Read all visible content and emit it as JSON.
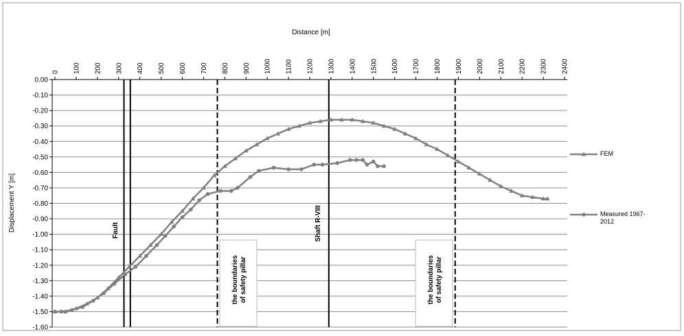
{
  "chart_data": {
    "type": "line",
    "x_label": "Distance [m]",
    "y_label": "Displacement Y [m]",
    "xlim": [
      0,
      2400
    ],
    "xticks": [
      0,
      100,
      200,
      300,
      400,
      500,
      600,
      700,
      800,
      900,
      1000,
      1100,
      1200,
      1300,
      1400,
      1500,
      1600,
      1700,
      1800,
      1900,
      2000,
      2100,
      2200,
      2300,
      2400
    ],
    "ylim": [
      -1.6,
      0
    ],
    "yticks": [
      {
        "value": 0,
        "label": "0.00"
      },
      {
        "value": -0.1,
        "label": "-0.10"
      },
      {
        "value": -0.2,
        "label": "-0.20"
      },
      {
        "value": -0.3,
        "label": "-0.30"
      },
      {
        "value": -0.4,
        "label": "-0.40"
      },
      {
        "value": -0.5,
        "label": "-0.50"
      },
      {
        "value": -0.6,
        "label": "-0.60"
      },
      {
        "value": -0.7,
        "label": "-0.70"
      },
      {
        "value": -0.8,
        "label": "-0.80"
      },
      {
        "value": -0.9,
        "label": "-0.90"
      },
      {
        "value": -1.0,
        "label": "-1.00"
      },
      {
        "value": -1.1,
        "label": "-1.10"
      },
      {
        "value": -1.2,
        "label": "-1.20"
      },
      {
        "value": -1.3,
        "label": "-1.30"
      },
      {
        "value": -1.4,
        "label": "-1.40"
      },
      {
        "value": -1.5,
        "label": "-1.50"
      },
      {
        "value": -1.6,
        "label": "-1.60"
      }
    ],
    "grid": true,
    "legend": "right",
    "series": [
      {
        "name": "FEM",
        "color": "#808080",
        "marker": "triangle",
        "x": [
          0,
          50,
          100,
          150,
          200,
          250,
          300,
          350,
          400,
          450,
          500,
          550,
          600,
          650,
          700,
          750,
          800,
          850,
          900,
          950,
          1000,
          1050,
          1100,
          1150,
          1200,
          1250,
          1300,
          1350,
          1400,
          1450,
          1500,
          1550,
          1600,
          1650,
          1700,
          1750,
          1800,
          1850,
          1900,
          1950,
          2000,
          2050,
          2100,
          2150,
          2200,
          2250,
          2300,
          2320
        ],
        "values": [
          -1.5,
          -1.5,
          -1.48,
          -1.45,
          -1.41,
          -1.35,
          -1.28,
          -1.21,
          -1.14,
          -1.07,
          -1.0,
          -0.92,
          -0.85,
          -0.77,
          -0.7,
          -0.62,
          -0.56,
          -0.51,
          -0.46,
          -0.42,
          -0.38,
          -0.35,
          -0.32,
          -0.3,
          -0.28,
          -0.27,
          -0.26,
          -0.26,
          -0.26,
          -0.27,
          -0.28,
          -0.3,
          -0.32,
          -0.35,
          -0.38,
          -0.42,
          -0.45,
          -0.49,
          -0.53,
          -0.57,
          -0.61,
          -0.65,
          -0.69,
          -0.72,
          -0.75,
          -0.76,
          -0.77,
          -0.77
        ]
      },
      {
        "name": "Measured 1967-2012",
        "color": "#808080",
        "marker": "circle",
        "x": [
          0,
          30,
          80,
          130,
          180,
          230,
          280,
          330,
          380,
          430,
          480,
          520,
          560,
          600,
          640,
          680,
          720,
          780,
          830,
          860,
          920,
          960,
          1030,
          1100,
          1160,
          1220,
          1260,
          1330,
          1390,
          1420,
          1450,
          1470,
          1500,
          1520,
          1550
        ],
        "values": [
          -1.5,
          -1.5,
          -1.49,
          -1.47,
          -1.43,
          -1.38,
          -1.32,
          -1.26,
          -1.21,
          -1.14,
          -1.07,
          -1.01,
          -0.95,
          -0.89,
          -0.84,
          -0.78,
          -0.74,
          -0.72,
          -0.72,
          -0.7,
          -0.63,
          -0.59,
          -0.57,
          -0.58,
          -0.58,
          -0.55,
          -0.55,
          -0.54,
          -0.52,
          -0.52,
          -0.52,
          -0.55,
          -0.53,
          -0.56,
          -0.56
        ]
      }
    ],
    "vlines": [
      {
        "x": 325,
        "style": "solid"
      },
      {
        "x": 355,
        "style": "solid"
      },
      {
        "x": 765,
        "style": "dashed"
      },
      {
        "x": 1290,
        "style": "solid"
      },
      {
        "x": 1885,
        "style": "dashed"
      }
    ],
    "annotations": [
      {
        "lines": [
          "Fault"
        ]
      },
      {
        "lines": [
          "the boundaries",
          "of safety  pillar"
        ]
      },
      {
        "lines": [
          "Shaft R-VIII"
        ]
      },
      {
        "lines": [
          "the boundaries",
          "of safety  pillar"
        ]
      }
    ]
  }
}
